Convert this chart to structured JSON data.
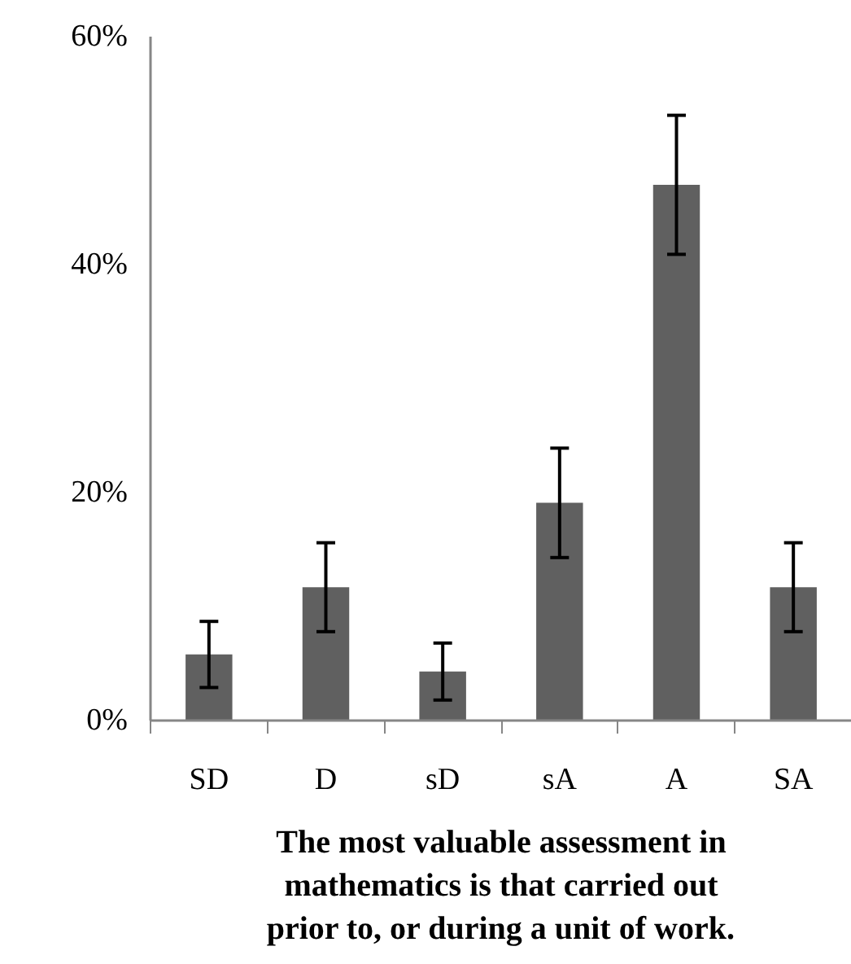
{
  "chart_data": {
    "type": "bar",
    "categories": [
      "SD",
      "D",
      "sD",
      "sA",
      "A",
      "SA"
    ],
    "values": [
      5.8,
      11.7,
      4.3,
      19.1,
      47.0,
      11.7
    ],
    "errors": [
      2.9,
      3.9,
      2.5,
      4.8,
      6.1,
      3.9
    ],
    "color": "#606060",
    "xlabel": "The most valuable assessment in mathematics is that carried out prior to, or during a unit of work.",
    "ylim": [
      0,
      60
    ],
    "yticks": [
      {
        "value": 0,
        "label": "0%"
      },
      {
        "value": 20,
        "label": "20%"
      },
      {
        "value": 40,
        "label": "40%"
      },
      {
        "value": 60,
        "label": "60%"
      }
    ],
    "grid": false
  }
}
